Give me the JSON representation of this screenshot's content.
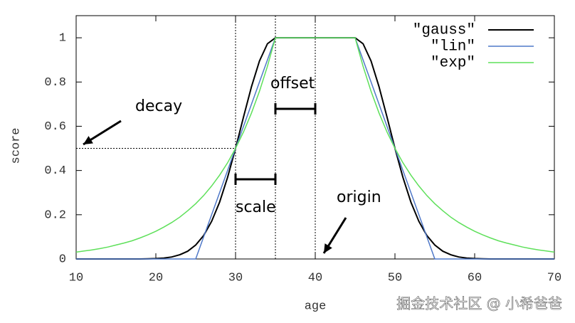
{
  "chart_data": {
    "type": "line",
    "xlabel": "age",
    "ylabel": "score",
    "x": [
      10,
      11,
      12,
      13,
      14,
      15,
      16,
      17,
      18,
      19,
      20,
      21,
      22,
      23,
      24,
      25,
      26,
      27,
      28,
      29,
      30,
      31,
      32,
      33,
      34,
      35,
      36,
      37,
      38,
      39,
      40,
      41,
      42,
      43,
      44,
      45,
      46,
      47,
      48,
      49,
      50,
      51,
      52,
      53,
      54,
      55,
      56,
      57,
      58,
      59,
      60,
      61,
      62,
      63,
      64,
      65,
      66,
      67,
      68,
      69,
      70
    ],
    "series": [
      {
        "name": "\"gauss\"",
        "color": "#000000",
        "values": [
          0,
          0,
          0,
          0,
          0,
          0,
          0,
          0,
          0,
          0.001,
          0.002,
          0.004,
          0.009,
          0.019,
          0.035,
          0.063,
          0.106,
          0.17,
          0.257,
          0.369,
          0.5,
          0.642,
          0.779,
          0.895,
          0.973,
          1,
          1,
          1,
          1,
          1,
          1,
          1,
          1,
          1,
          1,
          1,
          0.973,
          0.895,
          0.779,
          0.642,
          0.5,
          0.369,
          0.257,
          0.17,
          0.106,
          0.063,
          0.035,
          0.019,
          0.009,
          0.004,
          0.002,
          0.001,
          0,
          0,
          0,
          0,
          0,
          0,
          0,
          0,
          0
        ]
      },
      {
        "name": "\"lin\"",
        "color": "#4f78c8",
        "values": [
          0,
          0,
          0,
          0,
          0,
          0,
          0,
          0,
          0,
          0,
          0,
          0,
          0,
          0,
          0,
          0,
          0.1,
          0.2,
          0.3,
          0.4,
          0.5,
          0.6,
          0.7,
          0.8,
          0.9,
          1,
          1,
          1,
          1,
          1,
          1,
          1,
          1,
          1,
          1,
          1,
          0.9,
          0.8,
          0.7,
          0.6,
          0.5,
          0.4,
          0.3,
          0.2,
          0.1,
          0,
          0,
          0,
          0,
          0,
          0,
          0,
          0,
          0,
          0,
          0,
          0,
          0,
          0,
          0,
          0
        ]
      },
      {
        "name": "\"exp\"",
        "color": "#5ee05a",
        "values": [
          0.031,
          0.036,
          0.041,
          0.047,
          0.054,
          0.063,
          0.072,
          0.082,
          0.095,
          0.109,
          0.125,
          0.144,
          0.165,
          0.189,
          0.218,
          0.25,
          0.287,
          0.33,
          0.379,
          0.435,
          0.5,
          0.574,
          0.66,
          0.758,
          0.871,
          1,
          1,
          1,
          1,
          1,
          1,
          1,
          1,
          1,
          1,
          1,
          0.871,
          0.758,
          0.66,
          0.574,
          0.5,
          0.435,
          0.379,
          0.33,
          0.287,
          0.25,
          0.218,
          0.189,
          0.165,
          0.144,
          0.125,
          0.109,
          0.095,
          0.082,
          0.072,
          0.063,
          0.054,
          0.047,
          0.041,
          0.036,
          0.031
        ]
      }
    ],
    "xlim": [
      10,
      70
    ],
    "xticks": [
      10,
      20,
      30,
      40,
      50,
      60,
      70
    ],
    "ylim": [
      0,
      1.1
    ],
    "yticks": [
      0,
      0.2,
      0.4,
      0.6,
      0.8,
      1
    ],
    "grid": false,
    "legend": "top-right",
    "vlines": [
      30,
      35,
      40
    ],
    "hline": 0.5,
    "annotations": [
      "decay",
      "offset",
      "scale",
      "origin"
    ],
    "watermark": "掘金技术社区 @ 小希爸爸"
  }
}
